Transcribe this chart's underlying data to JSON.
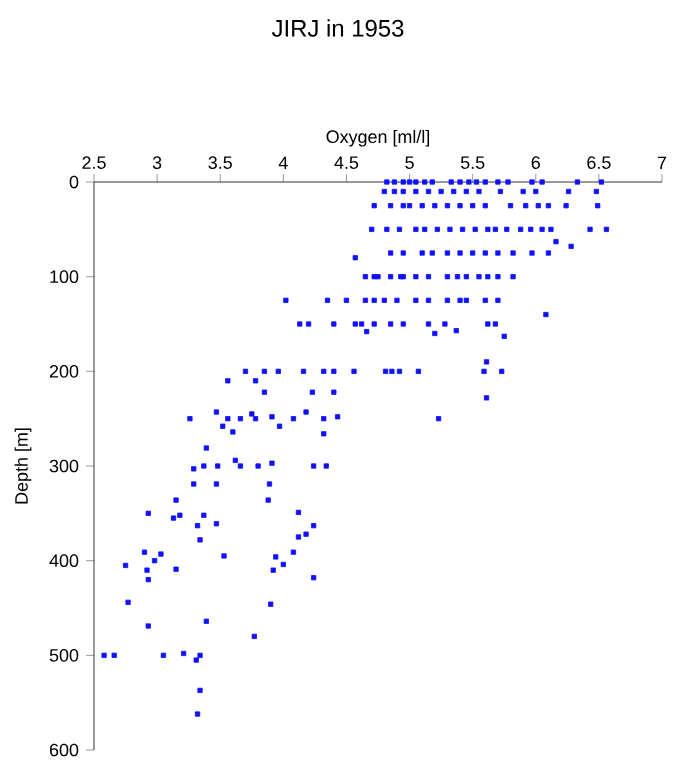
{
  "chart_data": {
    "type": "scatter",
    "title": "JIRJ in 1953",
    "xlabel": "Oxygen [ml/l]",
    "ylabel": "Depth [m]",
    "color": "#1010ff",
    "marker": "square",
    "xlim": [
      2.5,
      7
    ],
    "ylim": [
      600,
      0
    ],
    "xticks": [
      2.5,
      3,
      3.5,
      4,
      4.5,
      5,
      5.5,
      6,
      6.5,
      7
    ],
    "yticks": [
      0,
      100,
      200,
      300,
      400,
      500,
      600
    ],
    "x": [
      4.82,
      4.88,
      4.95,
      5.0,
      5.05,
      5.12,
      5.18,
      5.33,
      5.4,
      5.47,
      5.53,
      5.6,
      5.7,
      5.78,
      5.97,
      6.05,
      6.33,
      6.52,
      4.8,
      4.88,
      4.95,
      5.05,
      5.15,
      5.25,
      5.35,
      5.45,
      5.55,
      5.72,
      5.9,
      6.0,
      6.26,
      6.48,
      4.72,
      4.85,
      4.95,
      5.0,
      5.1,
      5.2,
      5.3,
      5.4,
      5.5,
      5.6,
      5.8,
      5.92,
      6.02,
      6.1,
      6.24,
      6.49,
      4.7,
      4.82,
      4.92,
      5.05,
      5.12,
      5.22,
      5.32,
      5.42,
      5.52,
      5.62,
      5.68,
      5.77,
      5.88,
      5.96,
      6.05,
      6.12,
      6.43,
      6.56,
      6.16,
      6.28,
      4.85,
      4.95,
      5.1,
      5.18,
      5.3,
      5.4,
      5.5,
      5.6,
      5.7,
      5.82,
      5.97,
      6.1,
      4.57,
      4.65,
      4.72,
      4.75,
      4.85,
      4.93,
      4.95,
      5.05,
      5.15,
      5.3,
      5.38,
      5.45,
      5.55,
      5.62,
      5.7,
      5.82,
      4.02,
      4.35,
      4.5,
      4.65,
      4.72,
      4.8,
      4.9,
      5.05,
      5.15,
      5.3,
      5.4,
      5.45,
      5.6,
      5.7,
      6.08,
      4.13,
      4.2,
      4.4,
      4.57,
      4.62,
      4.72,
      4.85,
      4.95,
      5.15,
      5.28,
      5.62,
      5.68,
      4.66,
      5.2,
      5.37,
      5.75,
      3.7,
      3.85,
      3.96,
      4.16,
      4.32,
      4.4,
      4.56,
      4.81,
      4.86,
      4.92,
      5.07,
      5.59,
      5.73,
      5.61,
      5.61,
      5.23,
      3.56,
      3.78,
      3.85,
      4.23,
      4.4,
      3.26,
      3.47,
      3.56,
      3.66,
      3.75,
      3.78,
      3.91,
      4.08,
      4.18,
      4.32,
      4.43,
      3.52,
      3.6,
      3.97,
      4.32,
      3.39,
      3.29,
      3.37,
      3.48,
      3.62,
      3.66,
      3.8,
      3.91,
      4.24,
      4.34,
      3.29,
      3.47,
      3.89,
      3.15,
      3.88,
      2.93,
      3.13,
      3.18,
      3.37,
      3.32,
      3.47,
      4.12,
      4.24,
      3.34,
      4.12,
      4.18,
      2.9,
      2.98,
      3.03,
      3.53,
      3.94,
      4.08,
      2.75,
      2.92,
      2.93,
      3.15,
      3.92,
      4.0,
      4.24,
      2.77,
      3.9,
      2.93,
      3.39,
      3.77,
      2.58,
      2.66,
      3.05,
      3.21,
      3.31,
      3.34,
      3.34,
      3.32
    ],
    "values": [
      0,
      0,
      0,
      0,
      0,
      0,
      0,
      0,
      0,
      0,
      0,
      0,
      0,
      0,
      0,
      0,
      0,
      0,
      10,
      10,
      10,
      10,
      10,
      10,
      10,
      10,
      10,
      10,
      10,
      10,
      10,
      10,
      25,
      25,
      25,
      25,
      25,
      25,
      25,
      25,
      25,
      25,
      25,
      25,
      25,
      25,
      25,
      25,
      50,
      50,
      50,
      50,
      50,
      50,
      50,
      50,
      50,
      50,
      50,
      50,
      50,
      50,
      50,
      50,
      50,
      50,
      63,
      68,
      75,
      75,
      75,
      75,
      75,
      75,
      75,
      75,
      75,
      75,
      75,
      75,
      80,
      100,
      100,
      100,
      100,
      100,
      100,
      100,
      100,
      100,
      100,
      100,
      100,
      100,
      100,
      100,
      125,
      125,
      125,
      125,
      125,
      125,
      125,
      125,
      125,
      125,
      125,
      125,
      125,
      125,
      140,
      150,
      150,
      150,
      150,
      150,
      150,
      150,
      150,
      150,
      150,
      150,
      150,
      158,
      160,
      157,
      163,
      200,
      200,
      200,
      200,
      200,
      200,
      200,
      200,
      200,
      200,
      200,
      200,
      200,
      190,
      228,
      250,
      210,
      210,
      222,
      222,
      222,
      250,
      243,
      250,
      250,
      245,
      250,
      248,
      250,
      243,
      250,
      248,
      258,
      264,
      258,
      266,
      281,
      303,
      300,
      300,
      294,
      300,
      300,
      297,
      300,
      300,
      319,
      319,
      319,
      336,
      336,
      350,
      355,
      352,
      352,
      363,
      361,
      349,
      363,
      378,
      375,
      372,
      391,
      400,
      393,
      395,
      396,
      391,
      405,
      410,
      420,
      409,
      410,
      404,
      418,
      444,
      446,
      469,
      464,
      480,
      500,
      500,
      500,
      498,
      505,
      500,
      537,
      562
    ]
  }
}
